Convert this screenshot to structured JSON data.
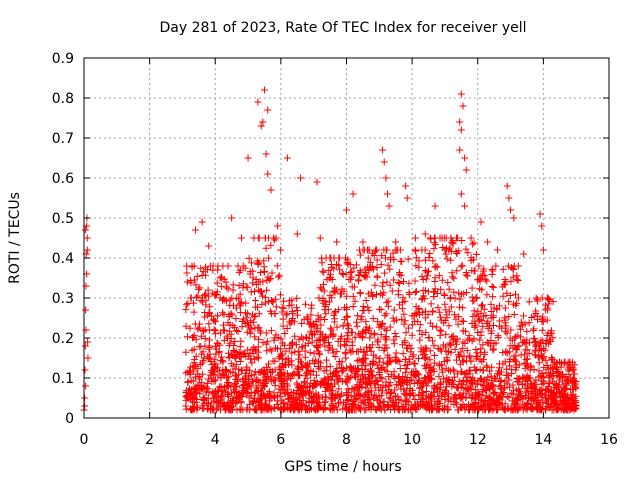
{
  "chart_data": {
    "type": "scatter",
    "title": "Day 281 of 2023, Rate Of TEC Index for receiver yell",
    "xlabel": "GPS time / hours",
    "ylabel": "ROTI / TECUs",
    "xlim": [
      0,
      16
    ],
    "ylim": [
      0,
      0.9
    ],
    "xticks": [
      "0",
      "2",
      "4",
      "6",
      "8",
      "10",
      "12",
      "14",
      "16"
    ],
    "yticks": [
      "0",
      "0.1",
      "0.2",
      "0.3",
      "0.4",
      "0.5",
      "0.6",
      "0.7",
      "0.8",
      "0.9"
    ],
    "grid": true,
    "marker": "+",
    "color": "#ff0000",
    "series": [
      {
        "name": "ROTI",
        "points": [
          [
            0.0,
            0.02
          ],
          [
            0.02,
            0.05
          ],
          [
            0.03,
            0.12
          ],
          [
            0.04,
            0.18
          ],
          [
            0.05,
            0.27
          ],
          [
            0.06,
            0.33
          ],
          [
            0.07,
            0.41
          ],
          [
            0.08,
            0.48
          ],
          [
            0.09,
            0.5
          ],
          [
            0.1,
            0.45
          ],
          [
            0.02,
            0.03
          ],
          [
            0.05,
            0.08
          ],
          [
            0.06,
            0.22
          ],
          [
            0.08,
            0.36
          ],
          [
            0.1,
            0.42
          ],
          [
            0.12,
            0.15
          ],
          [
            0.04,
            0.47
          ],
          [
            0.11,
            0.19
          ],
          [
            5.0,
            0.65
          ],
          [
            5.3,
            0.79
          ],
          [
            5.5,
            0.82
          ],
          [
            5.6,
            0.77
          ],
          [
            5.4,
            0.73
          ],
          [
            5.45,
            0.74
          ],
          [
            5.55,
            0.66
          ],
          [
            5.6,
            0.61
          ],
          [
            5.7,
            0.57
          ],
          [
            6.2,
            0.65
          ],
          [
            6.6,
            0.6
          ],
          [
            7.1,
            0.59
          ],
          [
            8.0,
            0.52
          ],
          [
            8.2,
            0.56
          ],
          [
            9.1,
            0.67
          ],
          [
            9.15,
            0.64
          ],
          [
            9.2,
            0.6
          ],
          [
            9.25,
            0.56
          ],
          [
            9.3,
            0.53
          ],
          [
            9.8,
            0.58
          ],
          [
            9.85,
            0.55
          ],
          [
            10.7,
            0.53
          ],
          [
            11.5,
            0.81
          ],
          [
            11.55,
            0.78
          ],
          [
            11.45,
            0.74
          ],
          [
            11.5,
            0.72
          ],
          [
            11.45,
            0.67
          ],
          [
            11.6,
            0.65
          ],
          [
            11.65,
            0.62
          ],
          [
            11.5,
            0.56
          ],
          [
            11.6,
            0.53
          ],
          [
            12.1,
            0.49
          ],
          [
            12.9,
            0.58
          ],
          [
            12.95,
            0.55
          ],
          [
            13.0,
            0.52
          ],
          [
            13.1,
            0.5
          ],
          [
            13.9,
            0.51
          ],
          [
            13.95,
            0.48
          ],
          [
            14.0,
            0.42
          ],
          [
            3.4,
            0.47
          ],
          [
            3.6,
            0.49
          ],
          [
            3.8,
            0.43
          ],
          [
            4.5,
            0.5
          ],
          [
            4.8,
            0.45
          ],
          [
            5.9,
            0.48
          ],
          [
            6.5,
            0.46
          ],
          [
            7.2,
            0.45
          ],
          [
            7.7,
            0.44
          ],
          [
            8.5,
            0.44
          ],
          [
            9.5,
            0.44
          ],
          [
            10.1,
            0.45
          ],
          [
            10.4,
            0.46
          ],
          [
            11.0,
            0.42
          ],
          [
            12.3,
            0.44
          ],
          [
            12.6,
            0.42
          ],
          [
            13.4,
            0.41
          ],
          [
            14.8,
            0.13
          ],
          [
            14.9,
            0.12
          ],
          [
            15.0,
            0.03
          ],
          [
            14.95,
            0.08
          ],
          [
            3.1,
            0.03
          ],
          [
            3.15,
            0.34
          ],
          [
            3.2,
            0.06
          ],
          [
            3.25,
            0.3
          ]
        ]
      }
    ],
    "density": {
      "note": "dense band of measurements between ~3.1 h and ~15 h",
      "segments": [
        {
          "from": 3.1,
          "to": 5.0,
          "max": 0.38,
          "typical": 0.12
        },
        {
          "from": 5.0,
          "to": 6.0,
          "max": 0.45,
          "typical": 0.15
        },
        {
          "from": 6.0,
          "to": 7.2,
          "max": 0.3,
          "typical": 0.1
        },
        {
          "from": 7.2,
          "to": 8.3,
          "max": 0.4,
          "typical": 0.12
        },
        {
          "from": 8.3,
          "to": 10.5,
          "max": 0.42,
          "typical": 0.14
        },
        {
          "from": 10.5,
          "to": 12.0,
          "max": 0.45,
          "typical": 0.15
        },
        {
          "from": 12.0,
          "to": 13.3,
          "max": 0.38,
          "typical": 0.12
        },
        {
          "from": 13.3,
          "to": 14.3,
          "max": 0.3,
          "typical": 0.08
        },
        {
          "from": 14.3,
          "to": 15.0,
          "max": 0.14,
          "typical": 0.06
        }
      ]
    }
  }
}
